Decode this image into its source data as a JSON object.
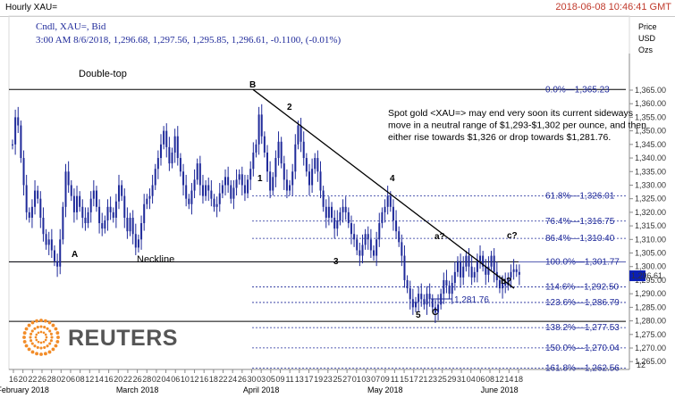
{
  "window": {
    "title": "Hourly XAU=",
    "timestamp": "2018-06-08 10:46:41 GMT"
  },
  "legend_line1": "Cndl, XAU=, Bid",
  "legend_line2": "3:00 AM 8/6/2018, 1,296.68, 1,297.56, 1,295.85, 1,296.61, -0.1100, (-0.01%)",
  "axis_unit": [
    "Price",
    "USD",
    "Ozs"
  ],
  "logo": {
    "text": "REUTERS"
  },
  "colors": {
    "candle": "#1f2a9a",
    "fib_line": "#1f2a9a",
    "trend": "#000000",
    "last_price_box": "#0b1fb5"
  },
  "chart_data": {
    "type": "candlestick",
    "y_range": [
      1260,
      1370
    ],
    "y_tick_labels": [
      "1,365.00",
      "1,360.00",
      "1,355.00",
      "1,350.00",
      "1,345.00",
      "1,340.00",
      "1,335.00",
      "1,330.00",
      "1,325.00",
      "1,320.00",
      "1,315.00",
      "1,310.00",
      "1,305.00",
      "1,300.00",
      "1,295.00",
      "1,290.00",
      "1,285.00",
      "1,280.00",
      "1,275.00",
      "1,270.00",
      "1,265.00"
    ],
    "y_ticks": [
      1365,
      1360,
      1355,
      1350,
      1345,
      1340,
      1335,
      1330,
      1325,
      1320,
      1315,
      1310,
      1305,
      1300,
      1295,
      1290,
      1285,
      1280,
      1275,
      1270,
      1265
    ],
    "last_price": "1,296.61",
    "last_price_value": 1296.61,
    "extra_axis_label": "12",
    "x_tick_labels": [
      "16",
      "20",
      "22",
      "26",
      "28",
      "02",
      "06",
      "08",
      "12",
      "14",
      "16",
      "20",
      "22",
      "26",
      "28",
      "02",
      "04",
      "06",
      "10",
      "12",
      "16",
      "18",
      "22",
      "24",
      "26",
      "30",
      "03",
      "05",
      "09",
      "11",
      "13",
      "17",
      "19",
      "23",
      "25",
      "27",
      "01",
      "03",
      "07",
      "09",
      "11",
      "15",
      "17",
      "21",
      "23",
      "25",
      "29",
      "31",
      "04",
      "06",
      "08",
      "12",
      "14",
      "18"
    ],
    "month_labels": [
      "February 2018",
      "March 2018",
      "April 2018",
      "May 2018",
      "June 2018"
    ],
    "title": "Double-top",
    "annotation": "Spot gold <XAU=> may end very soon its current sideways move in a neutral range of $1,293-$1,302 per ounce, and then either rise towards $1,326 or drop towards $1,281.76.",
    "annotation_lines": [
      "Spot gold <XAU=> may end very soon its current sideways",
      "move in a neutral range of $1,293-$1,302 per ounce, and then",
      "either rise towards $1,326 or drop towards $1,281.76."
    ],
    "fib_levels": [
      {
        "label": "0.0%",
        "value": 1365.23,
        "text": "1,365.23",
        "solid": true
      },
      {
        "label": "61.8%",
        "value": 1326.01,
        "text": "1,326.01",
        "solid": false
      },
      {
        "label": "76.4%",
        "value": 1316.75,
        "text": "1,316.75",
        "solid": false
      },
      {
        "label": "86.4%",
        "value": 1310.4,
        "text": "1,310.40",
        "solid": false
      },
      {
        "label": "100.0%",
        "value": 1301.77,
        "text": "1,301.77",
        "solid": true
      },
      {
        "label": "114.6%",
        "value": 1292.5,
        "text": "1,292.50",
        "solid": false
      },
      {
        "label": "123.6%",
        "value": 1286.79,
        "text": "1,286.79",
        "solid": false
      },
      {
        "label": "138.2%",
        "value": 1277.53,
        "text": "1,277.53",
        "solid": false
      },
      {
        "label": "150.0%",
        "value": 1270.04,
        "text": "1,270.04",
        "solid": false
      },
      {
        "label": "161.8%",
        "value": 1262.56,
        "text": "1,262.56",
        "solid": false
      }
    ],
    "support_label": "1,281.76",
    "neckline_label": "Neckline",
    "neckline_value": 1301.77,
    "neckline2_value": 1279.8,
    "wave_labels": [
      "A",
      "B",
      "1",
      "2",
      "3",
      "4",
      "5",
      "C",
      "a?",
      "b?",
      "c?"
    ],
    "close_series": [
      1345,
      1355,
      1352,
      1340,
      1330,
      1320,
      1318,
      1322,
      1328,
      1325,
      1318,
      1312,
      1308,
      1310,
      1306,
      1302,
      1300,
      1310,
      1322,
      1335,
      1330,
      1326,
      1320,
      1326,
      1322,
      1318,
      1316,
      1320,
      1325,
      1328,
      1322,
      1316,
      1314,
      1317,
      1322,
      1320,
      1318,
      1324,
      1330,
      1326,
      1318,
      1313,
      1318,
      1312,
      1307,
      1310,
      1316,
      1323,
      1325,
      1326,
      1330,
      1336,
      1340,
      1345,
      1350,
      1344,
      1338,
      1342,
      1348,
      1340,
      1335,
      1330,
      1325,
      1323,
      1328,
      1332,
      1338,
      1330,
      1326,
      1330,
      1328,
      1325,
      1322,
      1323,
      1327,
      1330,
      1333,
      1330,
      1325,
      1329,
      1332,
      1334,
      1330,
      1327,
      1332,
      1336,
      1342,
      1345,
      1356,
      1348,
      1342,
      1335,
      1328,
      1333,
      1340,
      1346,
      1338,
      1332,
      1328,
      1330,
      1335,
      1345,
      1352,
      1346,
      1340,
      1335,
      1330,
      1336,
      1340,
      1335,
      1328,
      1322,
      1318,
      1322,
      1318,
      1314,
      1317,
      1320,
      1322,
      1320,
      1316,
      1312,
      1310,
      1306,
      1304,
      1308,
      1312,
      1310,
      1306,
      1304,
      1310,
      1316,
      1320,
      1322,
      1326,
      1322,
      1317,
      1313,
      1309,
      1304,
      1295,
      1292,
      1288,
      1285,
      1287,
      1290,
      1288,
      1286,
      1290,
      1288,
      1285,
      1283,
      1286,
      1290,
      1295,
      1293,
      1290,
      1294,
      1298,
      1302,
      1296,
      1300,
      1304,
      1300,
      1296,
      1298,
      1302,
      1304,
      1300,
      1297,
      1300,
      1304,
      1298,
      1295,
      1292,
      1294,
      1293,
      1296,
      1298,
      1299,
      1298,
      1297
    ]
  }
}
